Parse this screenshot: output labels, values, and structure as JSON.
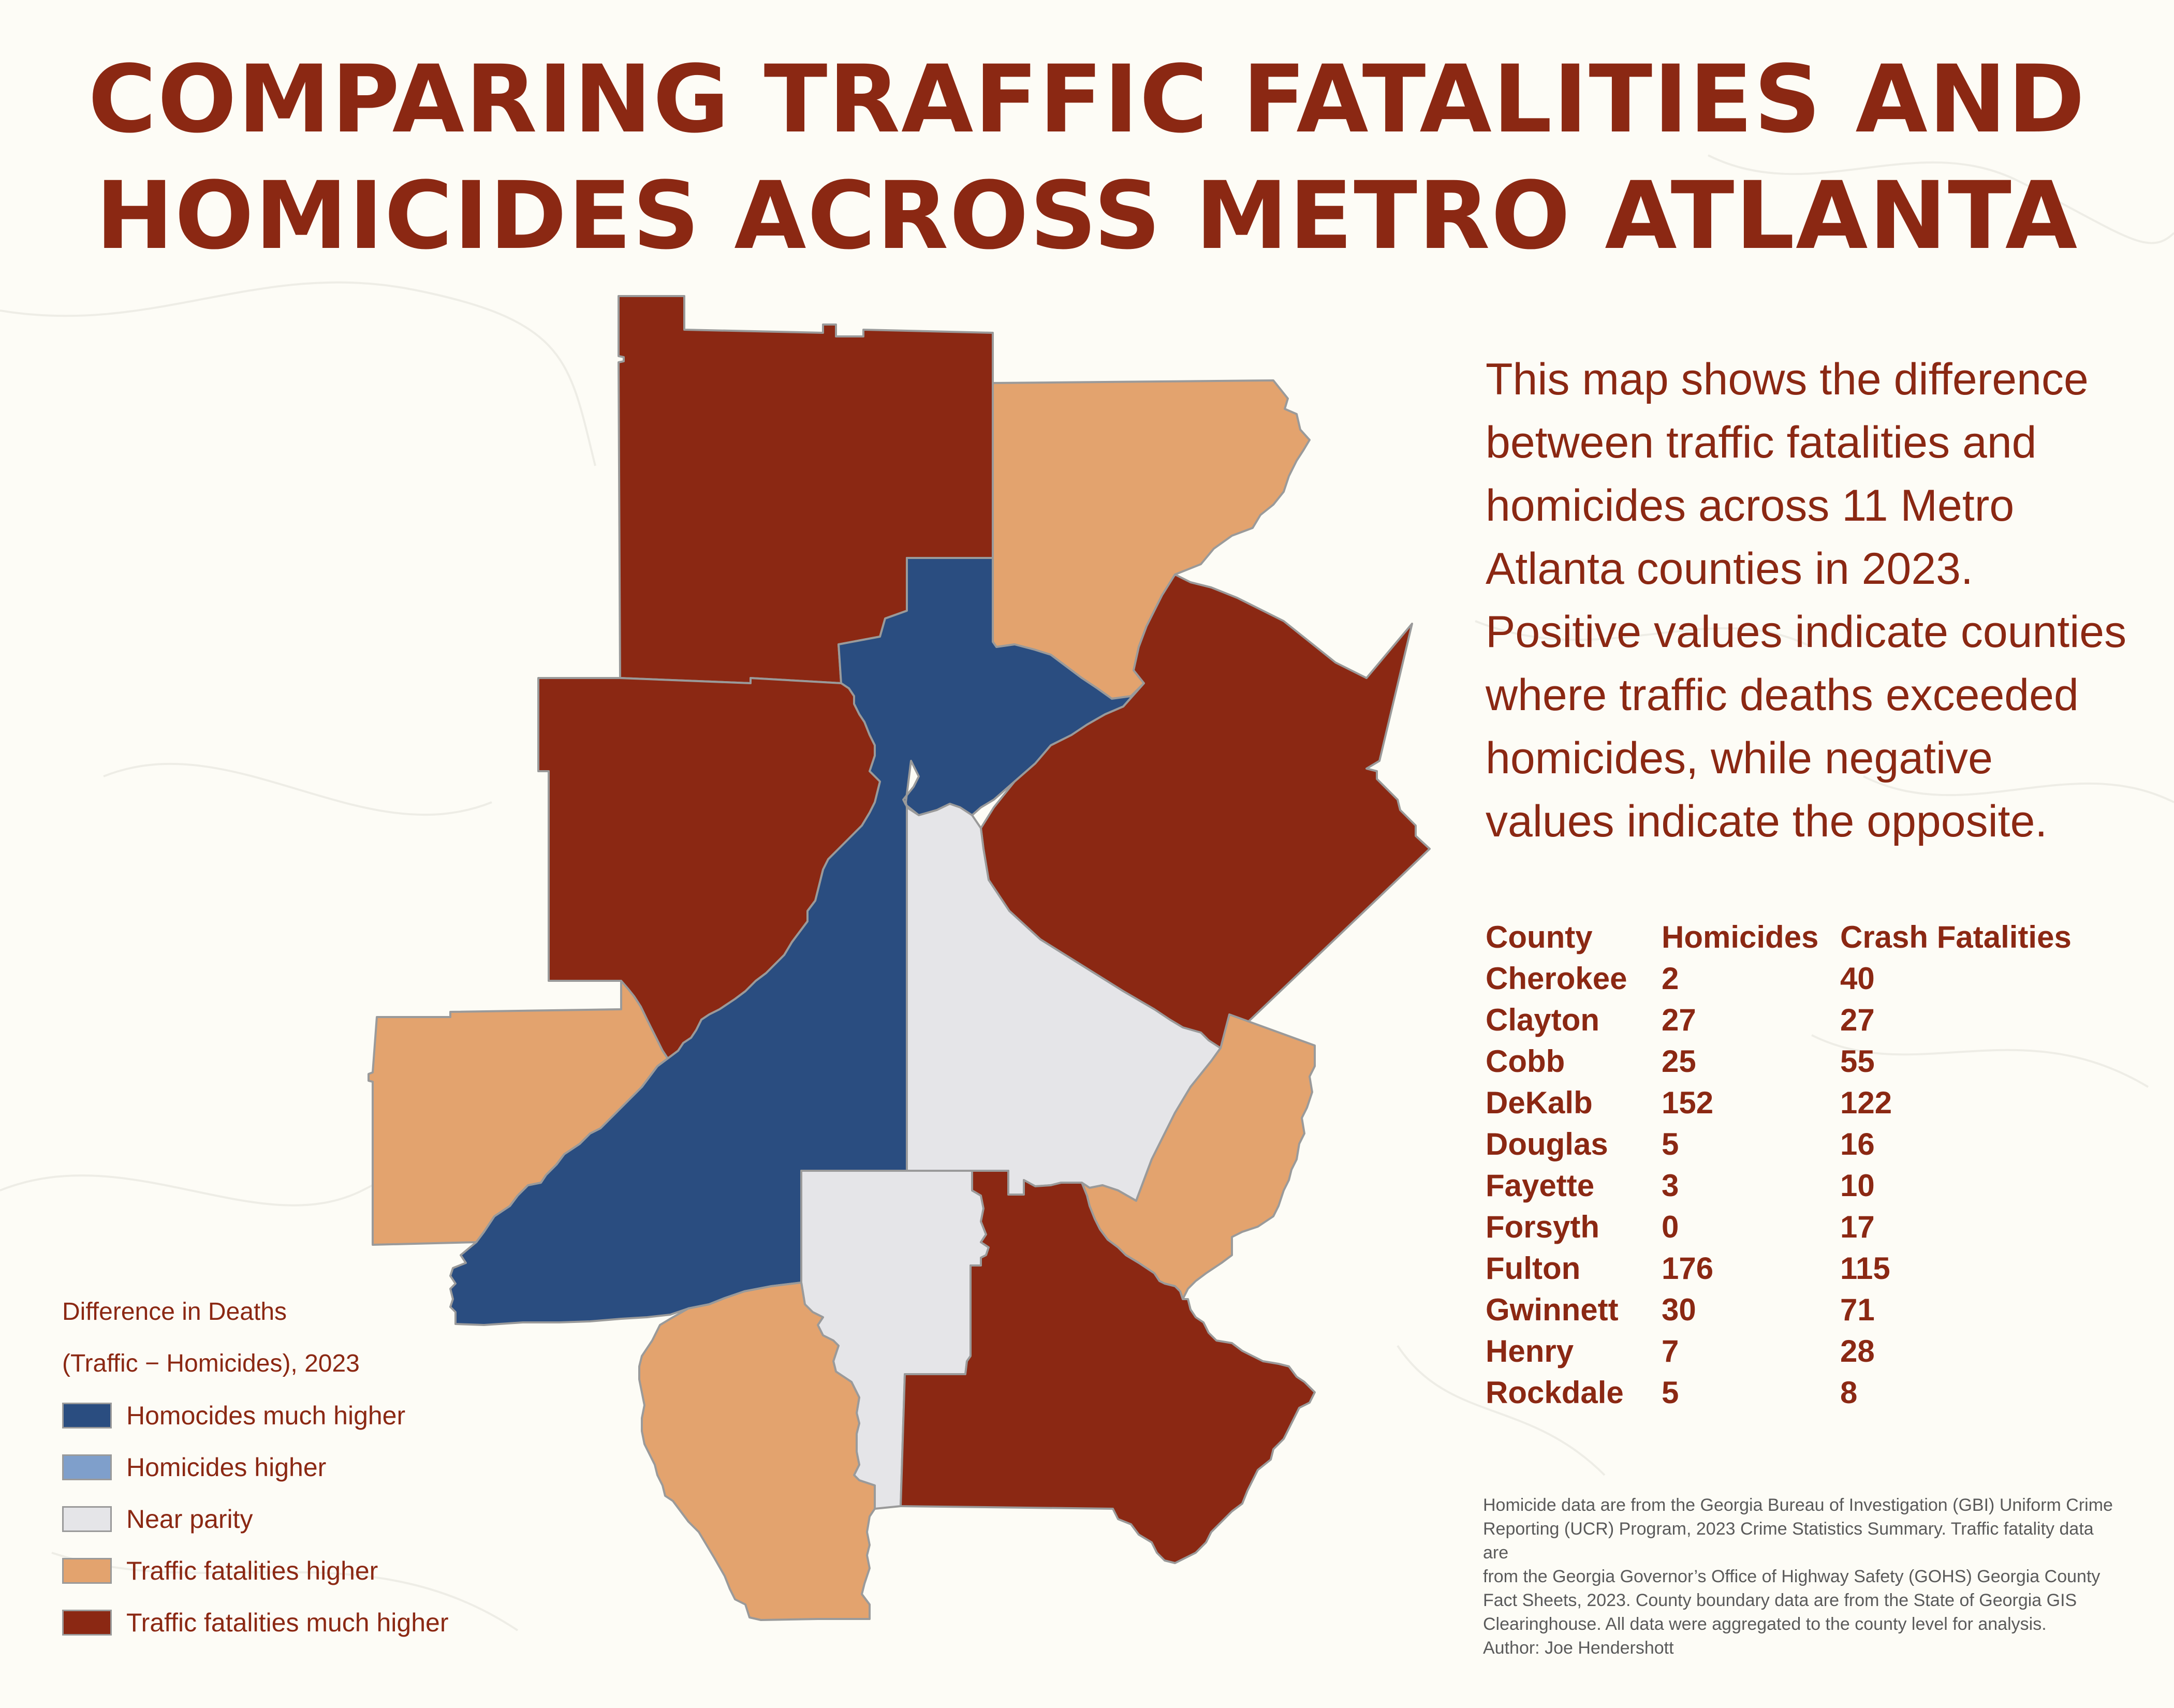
{
  "title": {
    "line1": "COMPARING TRAFFIC FATALITIES AND",
    "line2": "HOMICIDES ACROSS METRO ATLANTA"
  },
  "description": "This map shows the difference between traffic fatalities and homicides across 11 Metro Atlanta counties in 2023. Positive values indicate counties where traffic deaths exceeded homicides, while negative values indicate the opposite.",
  "table": {
    "headers": [
      "County",
      "Homicides",
      "Crash Fatalities"
    ],
    "rows": [
      {
        "county": "Cherokee",
        "homicides": "2",
        "crash": "40"
      },
      {
        "county": "Clayton",
        "homicides": "27",
        "crash": "27"
      },
      {
        "county": "Cobb",
        "homicides": "25",
        "crash": "55"
      },
      {
        "county": "DeKalb",
        "homicides": "152",
        "crash": "122"
      },
      {
        "county": "Douglas",
        "homicides": "5",
        "crash": "16"
      },
      {
        "county": "Fayette",
        "homicides": "3",
        "crash": "10"
      },
      {
        "county": "Forsyth",
        "homicides": "0",
        "crash": "17"
      },
      {
        "county": "Fulton",
        "homicides": "176",
        "crash": "115"
      },
      {
        "county": "Gwinnett",
        "homicides": "30",
        "crash": "71"
      },
      {
        "county": "Henry",
        "homicides": "7",
        "crash": "28"
      },
      {
        "county": "Rockdale",
        "homicides": "5",
        "crash": "8"
      }
    ]
  },
  "legend": {
    "title_line1": "Difference in Deaths",
    "title_line2": "(Traffic − Homicides), 2023",
    "items": [
      {
        "label": "Homocides much higher",
        "color": "#2a4d80"
      },
      {
        "label": "Homicides higher",
        "color": "#7f9fcb"
      },
      {
        "label": "Near parity",
        "color": "#e5e5e8"
      },
      {
        "label": "Traffic fatalities higher",
        "color": "#e3a36e"
      },
      {
        "label": "Traffic fatalities much higher",
        "color": "#8b2813"
      }
    ]
  },
  "source": {
    "line1": "Homicide data are from the Georgia Bureau of Investigation (GBI) Uniform Crime",
    "line2": "Reporting (UCR) Program, 2023 Crime Statistics Summary. Traffic fatality data are",
    "line3": "from the Georgia Governor’s Office of Highway Safety (GOHS) Georgia County",
    "line4": "Fact Sheets, 2023. County boundary data are from the State of Georgia GIS",
    "line5": "Clearinghouse. All data were aggregated to the county level for analysis.",
    "line6": "Author: Joe Hendershott"
  },
  "colors": {
    "title": "#8b2813",
    "homicides_much_higher": "#2a4d80",
    "near_parity": "#e5e5e8",
    "traffic_higher": "#e3a36e",
    "traffic_much_higher": "#8b2813",
    "background": "#fdfcf6"
  }
}
